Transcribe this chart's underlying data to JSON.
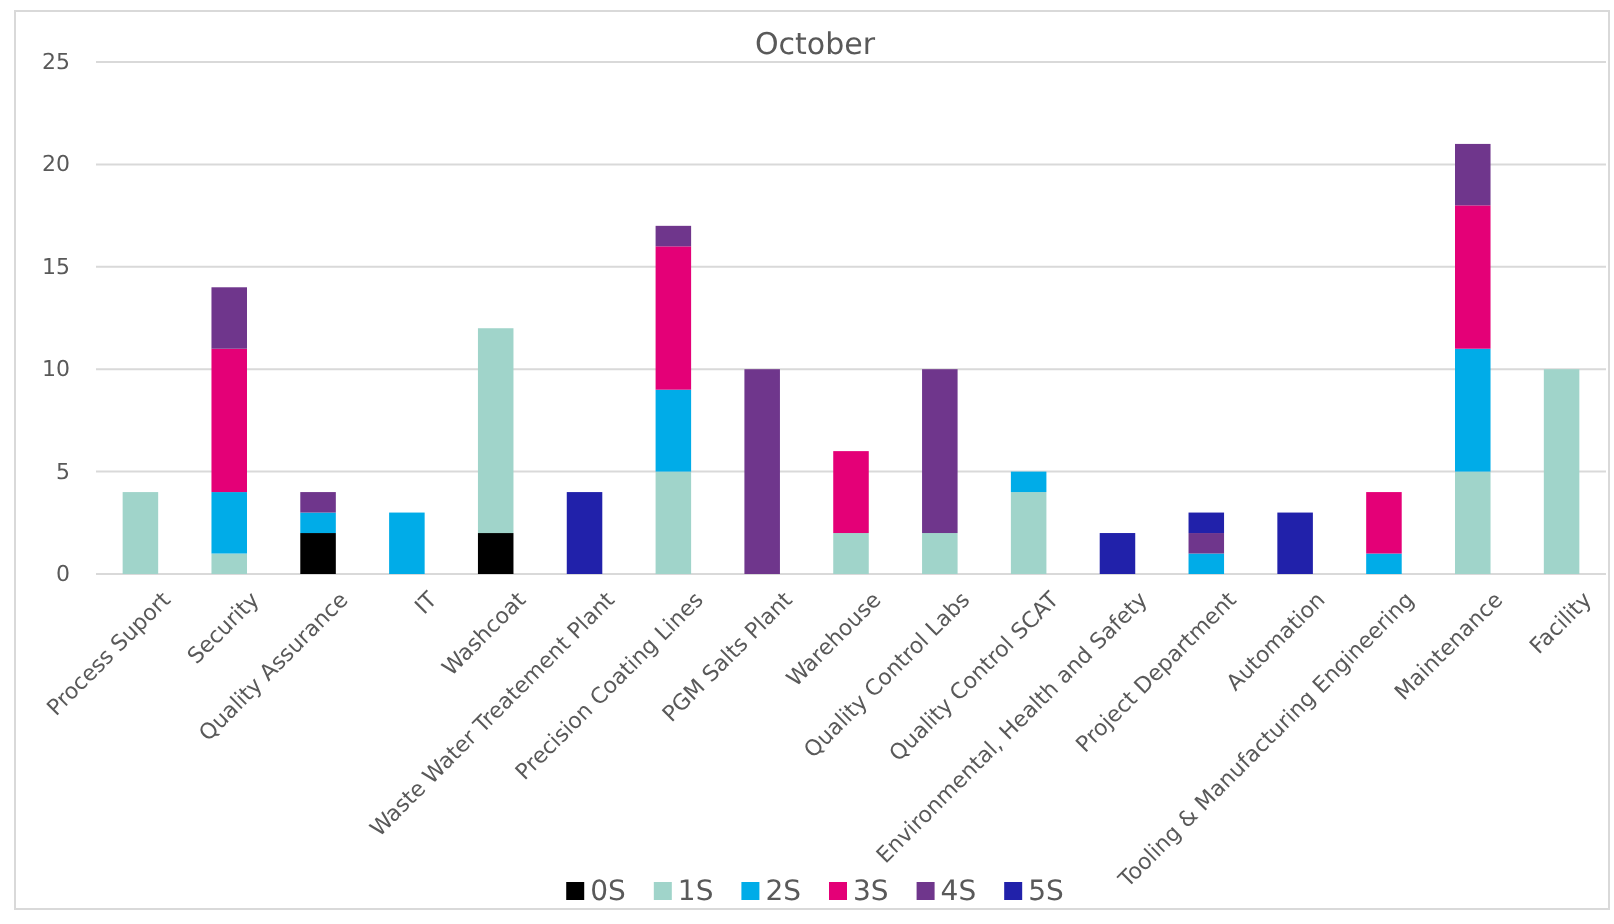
{
  "chart_data": {
    "type": "bar",
    "title": "October",
    "stacked": true,
    "categories": [
      "Process Suport",
      "Security",
      "Quality Assurance",
      "IT",
      "Washcoat",
      "Waste Water Treatement Plant",
      "Precision Coating Lines",
      "PGM Salts Plant",
      "Warehouse",
      "Quality Control Labs",
      "Quality Control SCAT",
      "Environmental, Health and Safety",
      "Project Department",
      "Automation",
      "Tooling & Manufacturing Engineering",
      "Maintenance",
      "Facility"
    ],
    "series": [
      {
        "name": "0S",
        "color": "#000000",
        "values": [
          0,
          0,
          2,
          0,
          2,
          0,
          0,
          0,
          0,
          0,
          0,
          0,
          0,
          0,
          0,
          0,
          0
        ]
      },
      {
        "name": "1S",
        "color": "#a0d4ca",
        "values": [
          4,
          1,
          0,
          0,
          10,
          0,
          5,
          0,
          2,
          2,
          4,
          0,
          0,
          0,
          0,
          5,
          10
        ]
      },
      {
        "name": "2S",
        "color": "#00ace8",
        "values": [
          0,
          3,
          1,
          3,
          0,
          0,
          4,
          0,
          0,
          0,
          1,
          0,
          1,
          0,
          1,
          6,
          0
        ]
      },
      {
        "name": "3S",
        "color": "#e40077",
        "values": [
          0,
          7,
          0,
          0,
          0,
          0,
          7,
          0,
          4,
          0,
          0,
          0,
          0,
          0,
          3,
          7,
          0
        ]
      },
      {
        "name": "4S",
        "color": "#6f368c",
        "values": [
          0,
          3,
          1,
          0,
          0,
          0,
          1,
          10,
          0,
          8,
          0,
          0,
          1,
          0,
          0,
          3,
          0
        ]
      },
      {
        "name": "5S",
        "color": "#2121aa",
        "values": [
          0,
          0,
          0,
          0,
          0,
          4,
          0,
          0,
          0,
          0,
          0,
          2,
          1,
          3,
          0,
          0,
          0
        ]
      }
    ],
    "ylim": [
      0,
      25
    ],
    "yticks": [
      0,
      5,
      10,
      15,
      20,
      25
    ],
    "grid": "y",
    "legend": "bottom"
  }
}
